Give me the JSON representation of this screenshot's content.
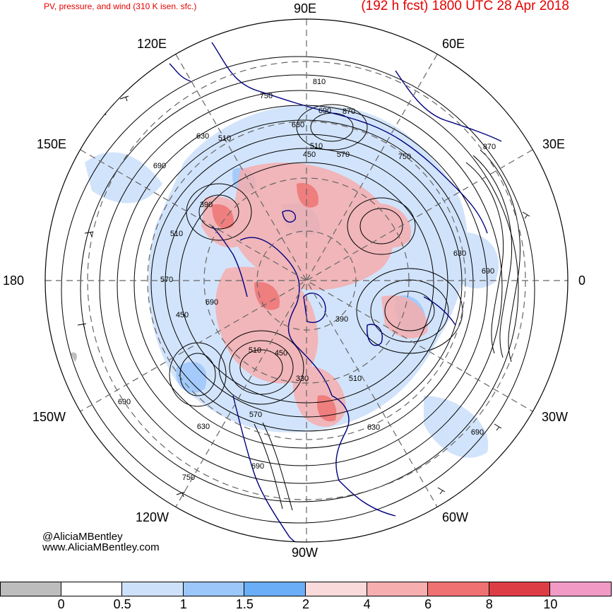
{
  "header": {
    "left_title": "PV, pressure, and wind (310 K isen. sfc.)",
    "right_title": "(192 h fcst) 1800 UTC 28 Apr 2018"
  },
  "map": {
    "projection": "north-polar-stereographic",
    "longitude_labels": {
      "top": "90E",
      "top_right": "60E",
      "right_upper": "30E",
      "right": "0",
      "right_lower": "30W",
      "bottom_right": "60W",
      "bottom": "90W",
      "bottom_left": "120W",
      "left_lower": "150W",
      "left": "180",
      "left_upper": "150E",
      "top_left": "120E"
    },
    "contour_labels": [
      "810",
      "750",
      "690",
      "870",
      "630",
      "510",
      "570",
      "450",
      "510",
      "750",
      "870",
      "630",
      "690",
      "630",
      "690",
      "570",
      "390",
      "510",
      "450",
      "690",
      "750",
      "510",
      "390",
      "450",
      "330",
      "510",
      "570",
      "630",
      "690",
      "630",
      "690",
      "750",
      "690"
    ],
    "colors": {
      "coast": "#00007f",
      "contour": "#000000",
      "grid": "#666666"
    }
  },
  "credits": {
    "handle": "@AliciaMBentley",
    "website": "www.AliciaMBentley.com"
  },
  "colorbar": {
    "segments": [
      {
        "color": "#bdbdbd"
      },
      {
        "color": "#ffffff"
      },
      {
        "color": "#cde1fb"
      },
      {
        "color": "#9cc7fa"
      },
      {
        "color": "#69aef7"
      },
      {
        "color": "#fadada"
      },
      {
        "color": "#f6aeae"
      },
      {
        "color": "#ef7171"
      },
      {
        "color": "#dd3e46"
      },
      {
        "color": "#f29ac6"
      }
    ],
    "ticks": [
      "0",
      "0.5",
      "1",
      "1.5",
      "2",
      "4",
      "6",
      "8",
      "10"
    ]
  }
}
